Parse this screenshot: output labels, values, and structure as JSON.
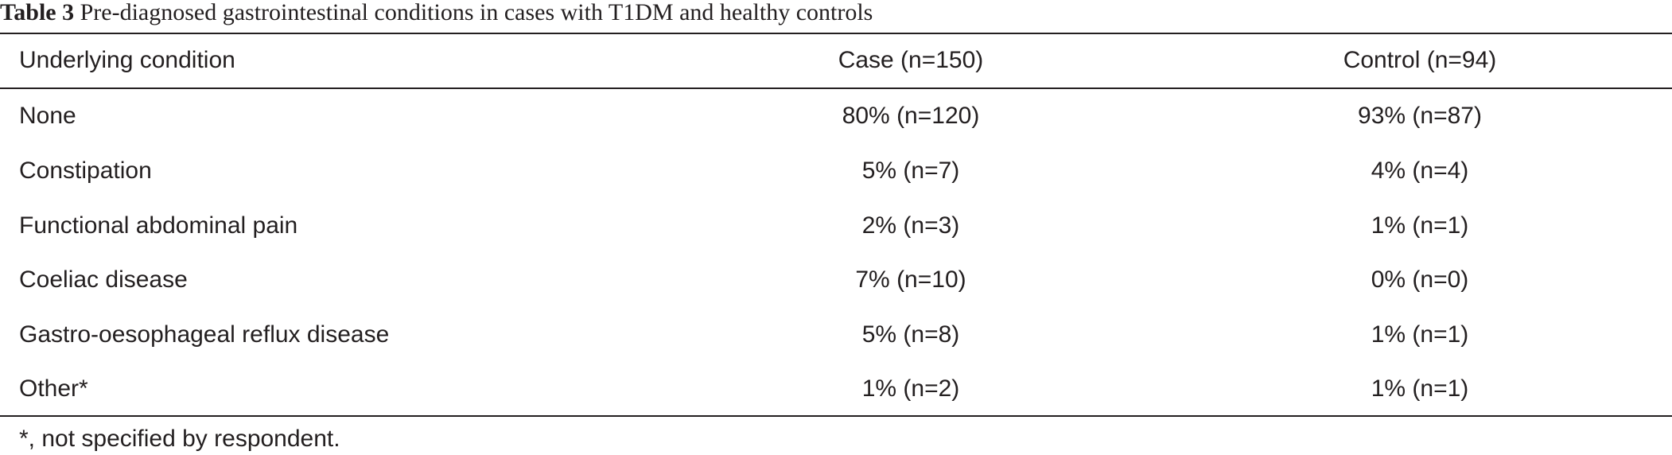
{
  "caption": {
    "label": "Table 3",
    "text": " Pre-diagnosed gastrointestinal conditions in cases with T1DM and healthy controls"
  },
  "table": {
    "headers": {
      "condition": "Underlying condition",
      "case": "Case (n=150)",
      "control": "Control (n=94)"
    },
    "rows": [
      {
        "condition": "None",
        "case": "80% (n=120)",
        "control": "93% (n=87)"
      },
      {
        "condition": "Constipation",
        "case": "5% (n=7)",
        "control": "4% (n=4)"
      },
      {
        "condition": "Functional abdominal pain",
        "case": "2% (n=3)",
        "control": "1% (n=1)"
      },
      {
        "condition": "Coeliac disease",
        "case": "7% (n=10)",
        "control": "0% (n=0)"
      },
      {
        "condition": "Gastro-oesophageal reflux disease",
        "case": "5% (n=8)",
        "control": "1% (n=1)"
      },
      {
        "condition": "Other*",
        "case": "1% (n=2)",
        "control": "1% (n=1)"
      }
    ]
  },
  "footnote": "*, not specified by respondent."
}
